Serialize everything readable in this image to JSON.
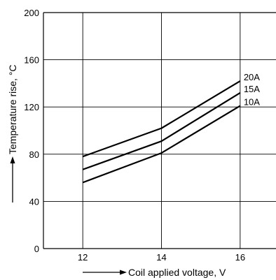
{
  "chart_data": {
    "type": "line",
    "xlabel": "Coil applied voltage, V",
    "ylabel": "Temperature rise, °C",
    "xlim": [
      11,
      17
    ],
    "ylim": [
      0,
      200
    ],
    "xticks": [
      12,
      14,
      16
    ],
    "xtick_labels": [
      "12",
      "14",
      "16"
    ],
    "yticks": [
      0,
      40,
      80,
      120,
      160,
      200
    ],
    "ytick_labels": [
      "0",
      "40",
      "80",
      "120",
      "160",
      "200"
    ],
    "grid": true,
    "series": [
      {
        "name": "20A",
        "x": [
          12,
          14,
          16
        ],
        "y": [
          78,
          102,
          142
        ]
      },
      {
        "name": "15A",
        "x": [
          12,
          14,
          16
        ],
        "y": [
          67,
          91,
          132
        ]
      },
      {
        "name": "10A",
        "x": [
          12,
          14,
          16
        ],
        "y": [
          56,
          81,
          121
        ]
      }
    ],
    "colors": {
      "line": "#000000",
      "grid": "#000000"
    }
  }
}
